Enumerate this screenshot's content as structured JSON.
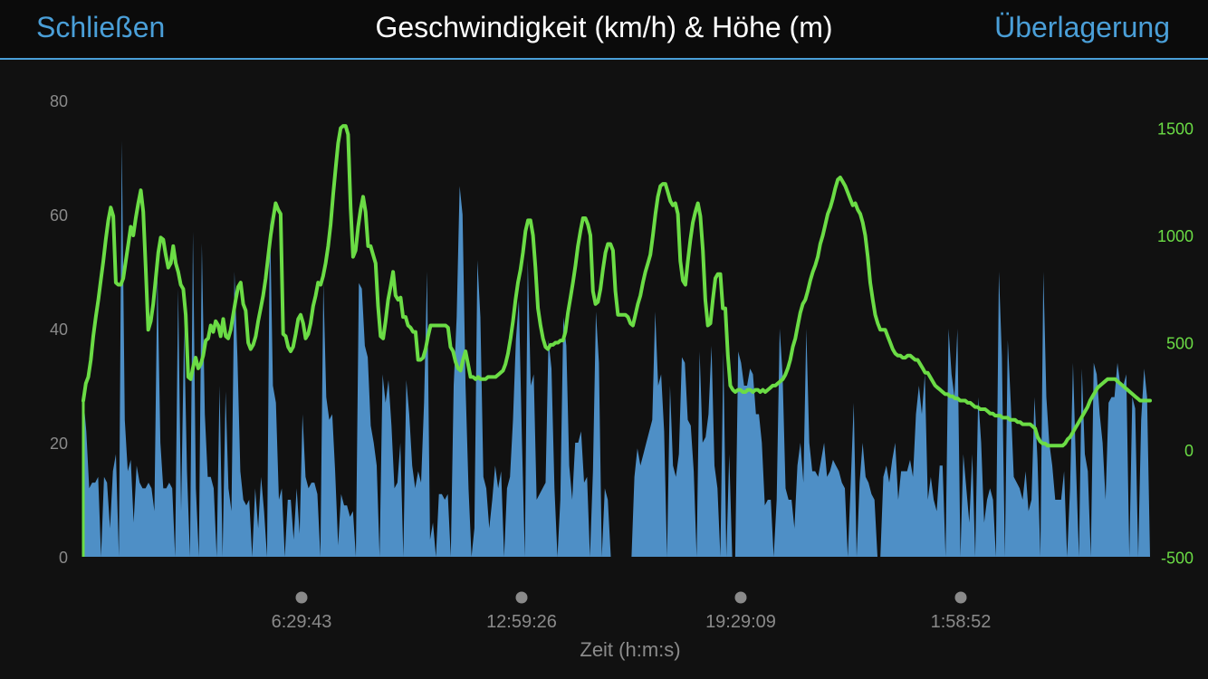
{
  "header": {
    "close_label": "Schließen",
    "title": "Geschwindigkeit (km/h) & Höhe (m)",
    "overlay_label": "Überlagerung"
  },
  "chart_data": {
    "type": "area",
    "xlabel": "Zeit (h:m:s)",
    "x_ticks": [
      "6:29:43",
      "12:59:26",
      "19:29:09",
      "1:58:52"
    ],
    "y_left": {
      "label": "",
      "ticks": [
        0,
        20,
        40,
        60,
        80
      ],
      "range": [
        0,
        80
      ]
    },
    "y_right": {
      "label": "",
      "ticks": [
        -500,
        0,
        500,
        1000,
        1500
      ],
      "range": [
        -500,
        1650
      ]
    },
    "colors": {
      "speed": "#4e8fc6",
      "altitude": "#6bdc45",
      "left_ticks": "#8a8a8a",
      "right_ticks": "#6bdc45",
      "x_ticks": "#8a8a8a"
    },
    "series": [
      {
        "axis": "left",
        "style": "area",
        "values": [
          28,
          22,
          12,
          13,
          13,
          14,
          0,
          14,
          13,
          5,
          15,
          18,
          0,
          73,
          24,
          15,
          17,
          6,
          16,
          13,
          12,
          12,
          13,
          12,
          8,
          50,
          20,
          12,
          12,
          13,
          12,
          0,
          47,
          8,
          40,
          15,
          0,
          57,
          12,
          0,
          55,
          25,
          14,
          14,
          12,
          0,
          30,
          0,
          29,
          12,
          8,
          50,
          35,
          15,
          10,
          9,
          10,
          0,
          12,
          5,
          14,
          8,
          0,
          60,
          30,
          27,
          10,
          12,
          0,
          10,
          10,
          3,
          12,
          4,
          25,
          14,
          12,
          13,
          13,
          11,
          0,
          48,
          28,
          24,
          25,
          15,
          2,
          11,
          9,
          9,
          7,
          8,
          0,
          48,
          47,
          37,
          35,
          23,
          20,
          16,
          0,
          32,
          27,
          31,
          23,
          12,
          13,
          20,
          0,
          31,
          25,
          16,
          12,
          15,
          13,
          27,
          50,
          3,
          6,
          0,
          11,
          11,
          10,
          11,
          0,
          30,
          42,
          65,
          60,
          30,
          12,
          0,
          5,
          52,
          42,
          14,
          12,
          5,
          10,
          16,
          12,
          15,
          0,
          12,
          14,
          24,
          38,
          45,
          21,
          0,
          52,
          30,
          32,
          10,
          11,
          12,
          13,
          38,
          33,
          12,
          0,
          10,
          42,
          37,
          16,
          10,
          20,
          20,
          22,
          13,
          14,
          0,
          15,
          43,
          34,
          0,
          12,
          10,
          0,
          0,
          0,
          0,
          0,
          0,
          0,
          0,
          14,
          19,
          16,
          18,
          20,
          22,
          24,
          43,
          30,
          32,
          22,
          0,
          30,
          16,
          14,
          18,
          35,
          34,
          24,
          23,
          15,
          0,
          36,
          20,
          21,
          25,
          37,
          16,
          12,
          0,
          36,
          0,
          18,
          0,
          0,
          36,
          34,
          30,
          30,
          33,
          32,
          25,
          25,
          20,
          9,
          10,
          10,
          0,
          10,
          40,
          32,
          12,
          10,
          10,
          5,
          16,
          20,
          13,
          40,
          20,
          15,
          15,
          14,
          17,
          20,
          14,
          15,
          17,
          16,
          15,
          13,
          12,
          0,
          13,
          27,
          0,
          13,
          20,
          14,
          13,
          11,
          10,
          0,
          0,
          14,
          16,
          13,
          17,
          20,
          10,
          15,
          15,
          15,
          17,
          14,
          25,
          30,
          25,
          32,
          10,
          14,
          10,
          8,
          16,
          16,
          0,
          40,
          32,
          28,
          40,
          0,
          18,
          12,
          6,
          18,
          0,
          28,
          20,
          6,
          10,
          12,
          10,
          0,
          50,
          35,
          0,
          38,
          27,
          14,
          13,
          12,
          10,
          15,
          8,
          10,
          28,
          17,
          0,
          50,
          28,
          20,
          16,
          10,
          10,
          10,
          15,
          0,
          12,
          34,
          16,
          0,
          33,
          18,
          15,
          0,
          34,
          32,
          25,
          20,
          10,
          27,
          28,
          28,
          34,
          30,
          30,
          32,
          0,
          28,
          26,
          0,
          24,
          33,
          28,
          0
        ]
      },
      {
        "axis": "right",
        "style": "line",
        "values": [
          230,
          310,
          340,
          420,
          530,
          620,
          700,
          790,
          880,
          980,
          1070,
          1130,
          1090,
          780,
          770,
          770,
          800,
          880,
          960,
          1040,
          1000,
          1080,
          1150,
          1210,
          1110,
          840,
          560,
          600,
          680,
          800,
          920,
          990,
          980,
          910,
          850,
          870,
          950,
          870,
          830,
          770,
          750,
          630,
          340,
          330,
          390,
          430,
          380,
          400,
          440,
          510,
          520,
          580,
          550,
          600,
          580,
          530,
          610,
          530,
          520,
          560,
          630,
          700,
          760,
          780,
          680,
          650,
          500,
          470,
          490,
          530,
          600,
          660,
          720,
          800,
          900,
          1000,
          1080,
          1150,
          1120,
          1100,
          540,
          530,
          480,
          460,
          480,
          540,
          610,
          630,
          590,
          520,
          540,
          590,
          670,
          720,
          780,
          770,
          810,
          870,
          950,
          1050,
          1190,
          1310,
          1430,
          1500,
          1510,
          1510,
          1470,
          1130,
          900,
          930,
          1040,
          1120,
          1180,
          1110,
          950,
          950,
          910,
          870,
          670,
          530,
          520,
          600,
          700,
          760,
          830,
          720,
          700,
          710,
          620,
          620,
          580,
          570,
          550,
          550,
          420,
          420,
          430,
          470,
          530,
          580,
          580,
          580,
          580,
          580,
          580,
          580,
          570,
          480,
          460,
          410,
          380,
          370,
          420,
          460,
          400,
          340,
          340,
          330,
          340,
          330,
          330,
          330,
          340,
          340,
          340,
          340,
          350,
          360,
          370,
          400,
          450,
          520,
          600,
          700,
          780,
          840,
          920,
          1020,
          1070,
          1070,
          1000,
          850,
          660,
          580,
          520,
          480,
          470,
          490,
          490,
          500,
          500,
          510,
          510,
          550,
          640,
          710,
          780,
          860,
          950,
          1020,
          1080,
          1080,
          1050,
          1000,
          740,
          680,
          690,
          750,
          840,
          920,
          960,
          960,
          930,
          740,
          630,
          630,
          630,
          630,
          620,
          590,
          580,
          630,
          680,
          720,
          780,
          830,
          870,
          910,
          1000,
          1100,
          1180,
          1230,
          1240,
          1240,
          1200,
          1160,
          1140,
          1150,
          1100,
          880,
          790,
          770,
          880,
          980,
          1060,
          1110,
          1150,
          1090,
          930,
          700,
          580,
          590,
          700,
          800,
          820,
          820,
          660,
          660,
          440,
          300,
          280,
          270,
          280,
          280,
          270,
          270,
          280,
          280,
          270,
          280,
          280,
          270,
          280,
          270,
          280,
          290,
          300,
          300,
          310,
          320,
          330,
          350,
          380,
          420,
          480,
          520,
          580,
          640,
          680,
          700,
          740,
          790,
          830,
          860,
          900,
          960,
          1000,
          1050,
          1100,
          1130,
          1170,
          1220,
          1260,
          1270,
          1250,
          1230,
          1200,
          1170,
          1140,
          1150,
          1120,
          1100,
          1060,
          1000,
          900,
          780,
          700,
          630,
          590,
          560,
          560,
          560,
          530,
          500,
          470,
          450,
          440,
          440,
          430,
          430,
          440,
          440,
          430,
          420,
          420,
          400,
          380,
          360,
          360,
          340,
          320,
          300,
          290,
          280,
          270,
          260,
          260,
          250,
          250,
          240,
          240,
          230,
          230,
          230,
          220,
          220,
          210,
          200,
          200,
          190,
          190,
          190,
          180,
          170,
          170,
          160,
          160,
          160,
          150,
          150,
          150,
          140,
          140,
          140,
          130,
          130,
          120,
          120,
          120,
          120,
          110,
          100,
          60,
          40,
          30,
          30,
          20,
          20,
          20,
          20,
          20,
          20,
          20,
          30,
          50,
          60,
          80,
          100,
          120,
          140,
          160,
          180,
          200,
          230,
          250,
          270,
          290,
          300,
          310,
          320,
          330,
          330,
          330,
          330,
          320,
          310,
          300,
          290,
          280,
          270,
          260,
          250,
          240,
          230,
          230,
          230,
          230,
          230
        ]
      }
    ]
  }
}
